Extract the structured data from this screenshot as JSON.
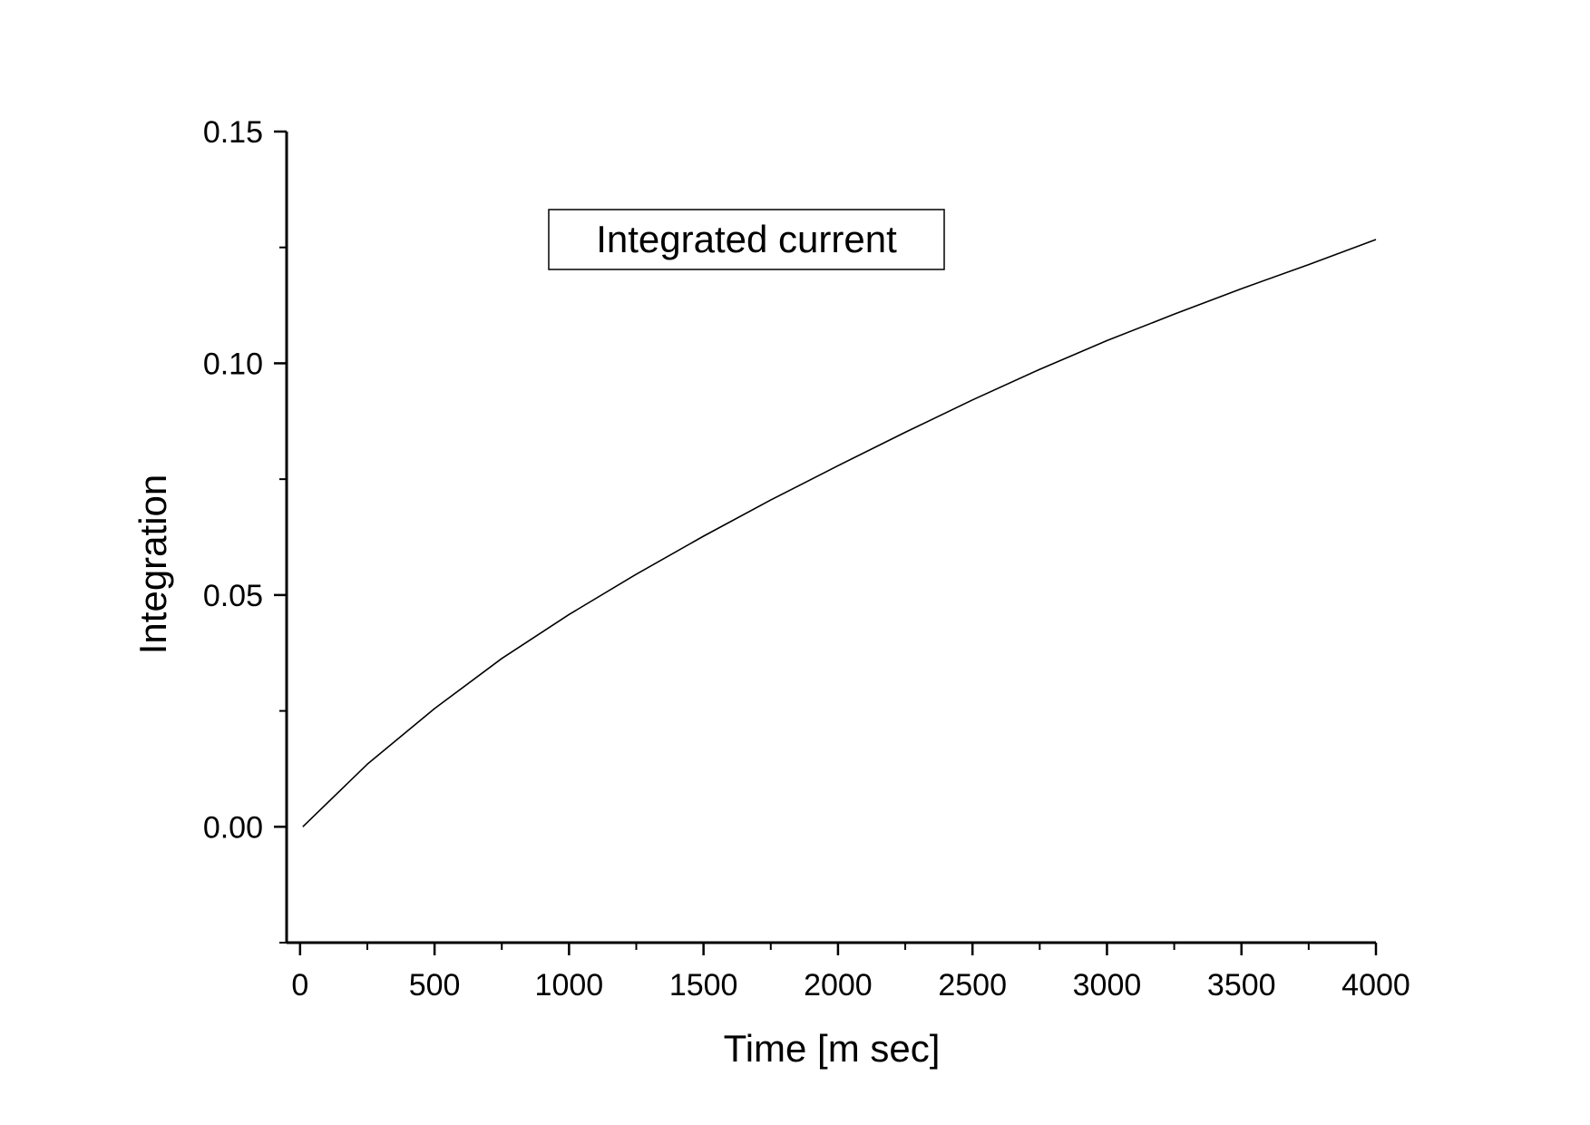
{
  "chart_data": {
    "type": "line",
    "title": "",
    "xlabel": "Time [m sec]",
    "ylabel": "Integration",
    "xlim": [
      -50,
      4000
    ],
    "ylim": [
      -0.025,
      0.15
    ],
    "x_ticks": [
      0,
      500,
      1000,
      1500,
      2000,
      2500,
      3000,
      3500,
      4000
    ],
    "x_tick_labels": [
      "0",
      "500",
      "1000",
      "1500",
      "2000",
      "2500",
      "3000",
      "3500",
      "4000"
    ],
    "y_ticks": [
      0.0,
      0.05,
      0.1,
      0.15
    ],
    "y_tick_labels": [
      "0.00",
      "0.05",
      "0.10",
      "0.15"
    ],
    "x_minor_ticks": [
      250,
      750,
      1250,
      1750,
      2250,
      2750,
      3250,
      3750
    ],
    "y_minor_ticks": [
      -0.025,
      0.025,
      0.075,
      0.125
    ],
    "grid": false,
    "legend_position": "top-center",
    "series": [
      {
        "name": "Integrated current",
        "color": "#000000",
        "x": [
          10,
          250,
          500,
          750,
          1000,
          1250,
          1500,
          1750,
          2000,
          2250,
          2500,
          2750,
          3000,
          3250,
          3500,
          3750,
          4000
        ],
        "y": [
          0.0,
          0.0135,
          0.0255,
          0.0363,
          0.0458,
          0.0545,
          0.0627,
          0.0705,
          0.0779,
          0.0851,
          0.0921,
          0.0987,
          0.1049,
          0.1106,
          0.1161,
          0.1213,
          0.1267
        ]
      }
    ]
  }
}
